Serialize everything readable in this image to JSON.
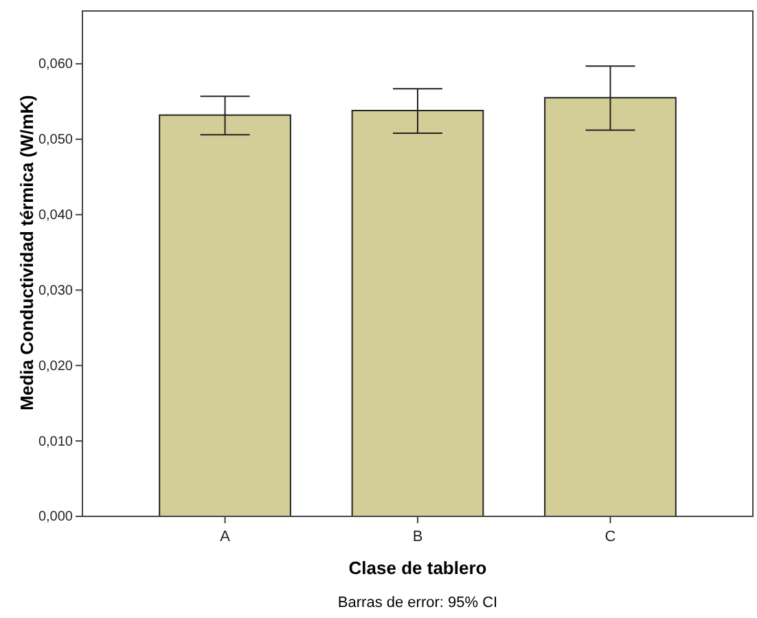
{
  "chart_data": {
    "type": "bar",
    "xlabel": "Clase de tablero",
    "ylabel": "Media Conductividad térmica  (W/mK)",
    "categories": [
      "A",
      "B",
      "C"
    ],
    "values": [
      0.0532,
      0.0538,
      0.0555
    ],
    "errors": [
      [
        0.0506,
        0.0557
      ],
      [
        0.0508,
        0.0567
      ],
      [
        0.0512,
        0.0597
      ]
    ],
    "color": "#d3ce97",
    "ylim": [
      0,
      0.067
    ],
    "yticks": [
      {
        "value": 0,
        "label": "0,000"
      },
      {
        "value": 0.01,
        "label": "0,010"
      },
      {
        "value": 0.02,
        "label": "0,020"
      },
      {
        "value": 0.03,
        "label": "0,030"
      },
      {
        "value": 0.04,
        "label": "0,040"
      },
      {
        "value": 0.05,
        "label": "0,050"
      },
      {
        "value": 0.06,
        "label": "0,060"
      }
    ],
    "annotations": [
      "Barras de error: 95% CI"
    ],
    "grid": false
  }
}
